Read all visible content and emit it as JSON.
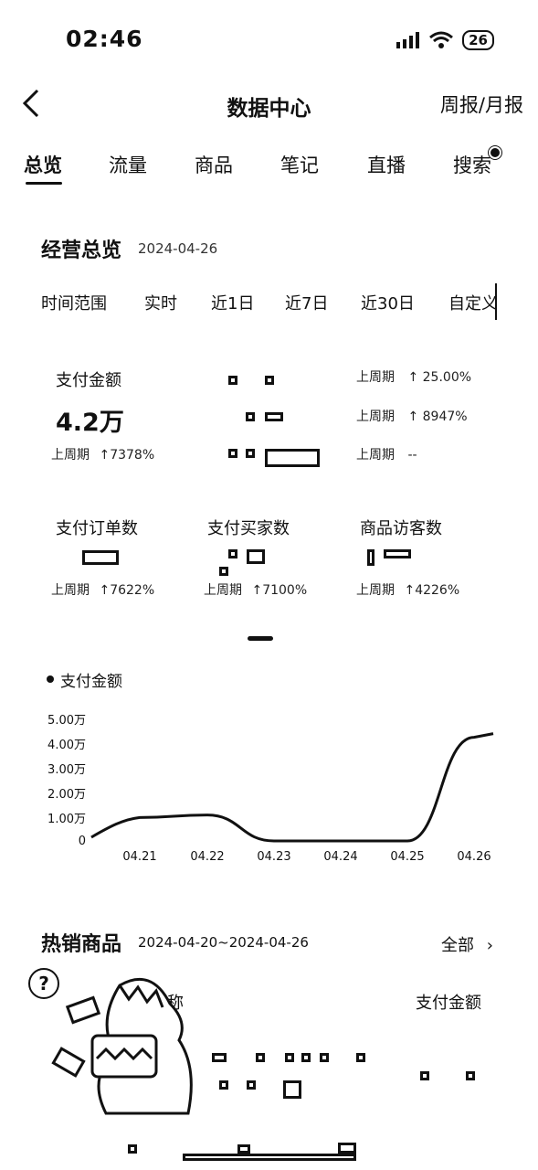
{
  "status_bar": {
    "time": "02:46",
    "battery": "26"
  },
  "nav": {
    "title": "数据中心",
    "report_link": "周报/月报"
  },
  "tabs": [
    "总览",
    "流量",
    "商品",
    "笔记",
    "直播",
    "搜索"
  ],
  "overview": {
    "title": "经营总览",
    "date": "2024-04-26",
    "range_label": "时间范围",
    "range_options": [
      "实时",
      "近1日",
      "近7日",
      "近30日",
      "自定义"
    ]
  },
  "metrics": {
    "pay_amount": {
      "label": "支付金额",
      "value": "4.2万",
      "prev": "上周期",
      "change": "7378%"
    },
    "m2": {
      "prev": "上周期",
      "change": "25.00%"
    },
    "m3": {
      "prev": "上周期",
      "change": "8947%"
    },
    "m4": {
      "prev": "上周期",
      "change": "--"
    },
    "pay_orders": {
      "label": "支付订单数",
      "prev": "上周期",
      "change": "7622%"
    },
    "pay_buyers": {
      "label": "支付买家数",
      "prev": "上周期",
      "change": "7100%"
    },
    "visitors": {
      "label": "商品访客数",
      "prev": "上周期",
      "change": "4226%"
    }
  },
  "chart_data": {
    "type": "line",
    "title": "支付金额",
    "categories": [
      "04.21",
      "04.22",
      "04.23",
      "04.24",
      "04.25",
      "04.26"
    ],
    "y_ticks": [
      "0",
      "1.00万",
      "2.00万",
      "3.00万",
      "4.00万",
      "5.00万"
    ],
    "values": [
      0.95,
      1.05,
      0.0,
      0.0,
      0.0,
      4.2
    ],
    "ylim": [
      0,
      5
    ],
    "unit": "万"
  },
  "hot_products": {
    "title": "热销商品",
    "date_range": "2024-04-20~2024-04-26",
    "all_link": "全部",
    "col_name": "称",
    "col_amount": "支付金额"
  },
  "colors": {
    "text": "#111111",
    "background": "#ffffff"
  }
}
